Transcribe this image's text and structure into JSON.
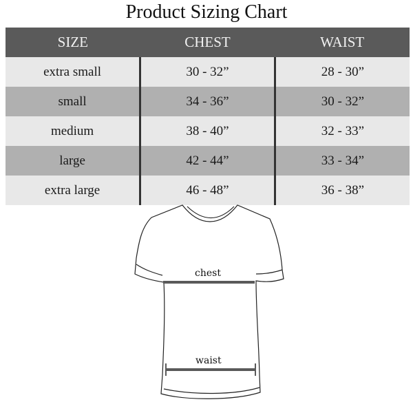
{
  "title": "Product Sizing Chart",
  "table": {
    "headers": [
      "SIZE",
      "CHEST",
      "WAIST"
    ],
    "rows": [
      [
        "extra small",
        "30 - 32”",
        "28 - 30”"
      ],
      [
        "small",
        "34 - 36”",
        "30 - 32”"
      ],
      [
        "medium",
        "38 - 40”",
        "32 - 33”"
      ],
      [
        "large",
        "42 - 44”",
        "33 - 34”"
      ],
      [
        "extra large",
        "46 - 48”",
        "36 - 38”"
      ]
    ]
  },
  "diagram": {
    "chest_label": "chest",
    "waist_label": "waist"
  },
  "colors": {
    "header": "#5a5a5a",
    "row_light": "#e8e8e8",
    "row_dark": "#b0b0b0",
    "measure_line": "#5a5a5a"
  }
}
